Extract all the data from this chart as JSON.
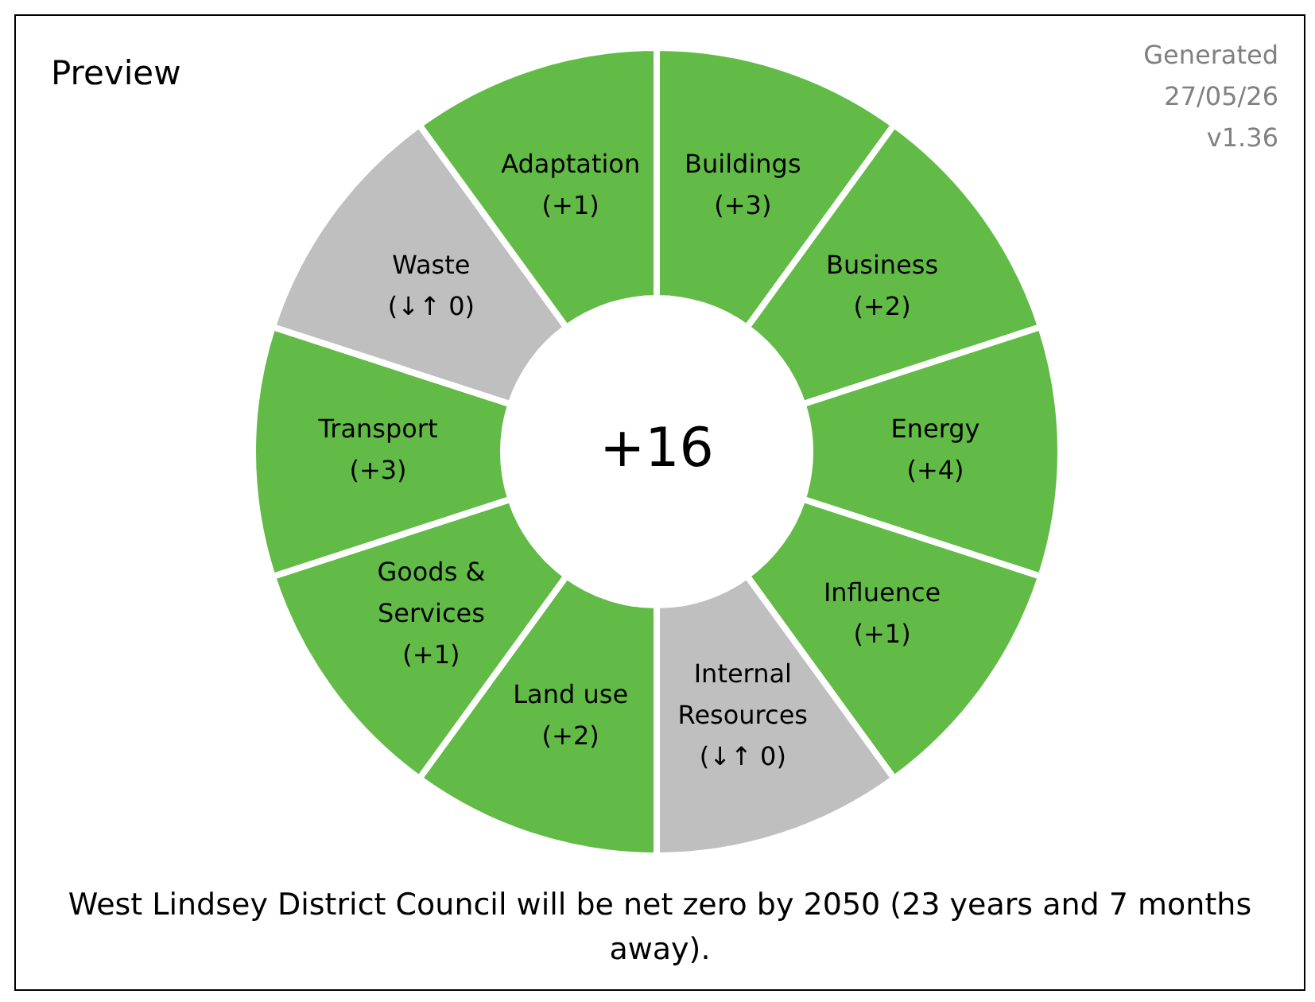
{
  "chart_data": {
    "type": "other",
    "title": "Preview",
    "categories": [
      "Buildings",
      "Business",
      "Energy",
      "Influence",
      "Internal Resources",
      "Land use",
      "Goods & Services",
      "Transport",
      "Waste",
      "Adaptation"
    ],
    "values": [
      3,
      2,
      4,
      1,
      0,
      2,
      1,
      3,
      0,
      1
    ],
    "value_labels": [
      "(+3)",
      "(+2)",
      "(+4)",
      "(+1)",
      "(↓↑ 0)",
      "(+2)",
      "(+1)",
      "(+3)",
      "(↓↑ 0)",
      "(+1)"
    ],
    "colors": [
      "#62bb46",
      "#62bb46",
      "#62bb46",
      "#62bb46",
      "#bfbfbf",
      "#62bb46",
      "#62bb46",
      "#62bb46",
      "#bfbfbf",
      "#62bb46"
    ],
    "legend": false,
    "annotations": [
      "+16",
      "Generated 27/05/26 v1.36",
      "West Lindsey District Council will be net zero by 2050 (23 years and 7 months away)."
    ]
  }
}
